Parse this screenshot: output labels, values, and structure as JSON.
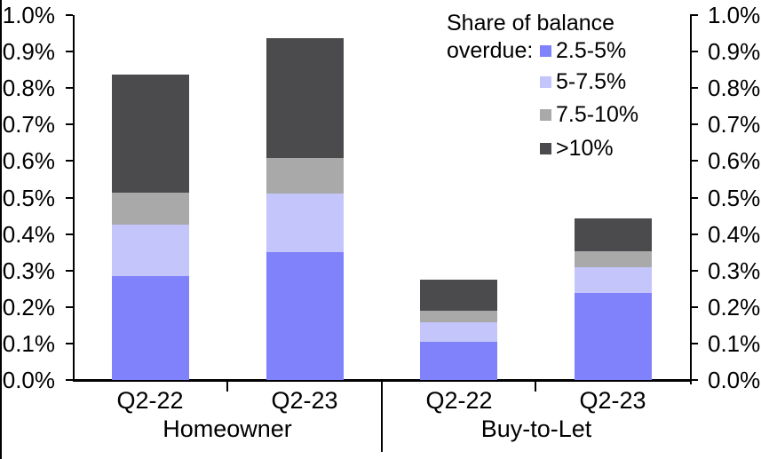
{
  "legend": {
    "heading_line1": "Share of balance",
    "heading_line2": "overdue:",
    "items": [
      {
        "label": "2.5-5%",
        "color": "#7f82fa"
      },
      {
        "label": "5-7.5%",
        "color": "#c3c5fb"
      },
      {
        "label": "7.5-10%",
        "color": "#a9a9aa"
      },
      {
        "label": ">10%",
        "color": "#4b4b4d"
      }
    ]
  },
  "chart_data": {
    "type": "bar",
    "stacked": true,
    "title": "",
    "legend_heading": "Share of balance overdue:",
    "legend_position": "top-right",
    "grid": false,
    "dual_y_axis": true,
    "unit": "percent of balances",
    "group_labels": [
      "Homeowner",
      "Buy-to-Let"
    ],
    "categories": [
      "Q2-22",
      "Q2-23",
      "Q2-22",
      "Q2-23"
    ],
    "category_group_index": [
      0,
      0,
      1,
      1
    ],
    "series": [
      {
        "name": "2.5-5%",
        "color": "#7f82fa",
        "values": [
          0.285,
          0.35,
          0.105,
          0.238
        ]
      },
      {
        "name": "5-7.5%",
        "color": "#c3c5fb",
        "values": [
          0.141,
          0.162,
          0.053,
          0.071
        ]
      },
      {
        "name": "7.5-10%",
        "color": "#a9a9aa",
        "values": [
          0.087,
          0.096,
          0.032,
          0.044
        ]
      },
      {
        "name": ">10%",
        "color": "#4b4b4d",
        "values": [
          0.324,
          0.329,
          0.085,
          0.09
        ]
      }
    ],
    "stack_totals": [
      0.837,
      0.937,
      0.275,
      0.443
    ],
    "ylim": [
      0.0,
      1.0
    ],
    "y_tick_step": 0.1,
    "y_tick_labels": [
      "0.0%",
      "0.1%",
      "0.2%",
      "0.3%",
      "0.4%",
      "0.5%",
      "0.6%",
      "0.7%",
      "0.8%",
      "0.9%",
      "1.0%"
    ],
    "axis_color": "#000000"
  }
}
